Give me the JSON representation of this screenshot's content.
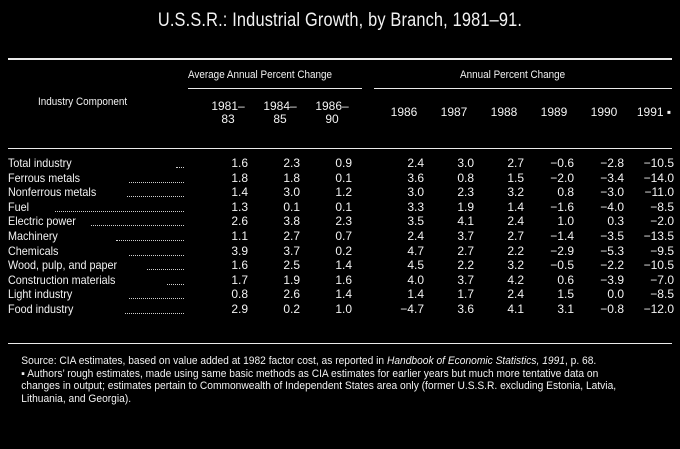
{
  "title": "U.S.S.R.: Industrial Growth, by Branch, 1981–91.",
  "headers": {
    "industry_component": "Industry Component",
    "avg_group": "Average Annual Percent Change",
    "annual_group": "Annual Percent Change",
    "columns": [
      "1981–\n83",
      "1984–\n85",
      "1986–\n90",
      "1986",
      "1987",
      "1988",
      "1989",
      "1990",
      "1991 ▪"
    ]
  },
  "rows": [
    {
      "name": "Total industry",
      "values": [
        "1.6",
        "2.3",
        "0.9",
        "2.4",
        "3.0",
        "2.7",
        "−0.6",
        "−2.8",
        "−10.5"
      ]
    },
    {
      "name": "Ferrous metals",
      "values": [
        "1.8",
        "1.8",
        "0.1",
        "3.6",
        "0.8",
        "1.5",
        "−2.0",
        "−3.4",
        "−14.0"
      ]
    },
    {
      "name": "Nonferrous metals",
      "values": [
        "1.4",
        "3.0",
        "1.2",
        "3.0",
        "2.3",
        "3.2",
        "0.8",
        "−3.0",
        "−11.0"
      ]
    },
    {
      "name": "Fuel",
      "values": [
        "1.3",
        "0.1",
        "0.1",
        "3.3",
        "1.9",
        "1.4",
        "−1.6",
        "−4.0",
        "−8.5"
      ]
    },
    {
      "name": "Electric power",
      "values": [
        "2.6",
        "3.8",
        "2.3",
        "3.5",
        "4.1",
        "2.4",
        "1.0",
        "0.3",
        "−2.0"
      ]
    },
    {
      "name": "Machinery",
      "values": [
        "1.1",
        "2.7",
        "0.7",
        "2.4",
        "3.7",
        "2.7",
        "−1.4",
        "−3.5",
        "−13.5"
      ]
    },
    {
      "name": "Chemicals",
      "values": [
        "3.9",
        "3.7",
        "0.2",
        "4.7",
        "2.7",
        "2.2",
        "−2.9",
        "−5.3",
        "−9.5"
      ]
    },
    {
      "name": "Wood, pulp, and paper",
      "values": [
        "1.6",
        "2.5",
        "1.4",
        "4.5",
        "2.2",
        "3.2",
        "−0.5",
        "−2.2",
        "−10.5"
      ]
    },
    {
      "name": "Construction materials",
      "values": [
        "1.7",
        "1.9",
        "1.6",
        "4.0",
        "3.7",
        "4.2",
        "0.6",
        "−3.9",
        "−7.0"
      ]
    },
    {
      "name": "Light industry",
      "values": [
        "0.8",
        "2.6",
        "1.4",
        "1.4",
        "1.7",
        "2.4",
        "1.5",
        "0.0",
        "−8.5"
      ]
    },
    {
      "name": "Food industry",
      "values": [
        "2.9",
        "0.2",
        "1.0",
        "−4.7",
        "3.6",
        "4.1",
        "3.1",
        "−0.8",
        "−12.0"
      ]
    }
  ],
  "notes": {
    "source_prefix": "Source: CIA estimates, based on value added at 1982 factor cost, as reported in ",
    "source_pub": "Handbook of Economic Statistics, 1991",
    "source_suffix": ", p. 68.",
    "footnote": "▪ Authors’ rough estimates, made using same basic methods as CIA estimates for earlier years but much more tentative data on changes in output; estimates pertain to Commonwealth of Independent States area only (former U.S.S.R. excluding Estonia, Latvia, Lithuania, and Georgia)."
  }
}
